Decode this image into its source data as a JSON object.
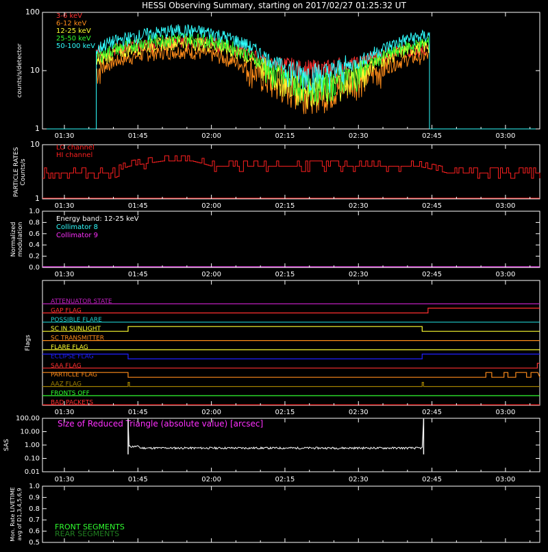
{
  "title": "HESSI Observing Summary, starting on 2017/02/27 01:25:32 UT",
  "time_ticks": [
    "01:30",
    "01:45",
    "02:00",
    "02:15",
    "02:30",
    "02:45",
    "03:00"
  ],
  "time_tick_minutes": [
    30,
    45,
    60,
    75,
    90,
    105,
    120
  ],
  "time_range_minutes": [
    25.53,
    127.0
  ],
  "chart_data": [
    {
      "type": "line",
      "panel": "count-rates",
      "ylabel": "counts/s/detector",
      "yscale": "log",
      "ylim": [
        1,
        100
      ],
      "ytick_labels": [
        "1",
        "10",
        "100"
      ],
      "ytick_values": [
        1,
        10,
        100
      ],
      "x": [
        36.5,
        38.0,
        42.0,
        48.0,
        54.0,
        60.0,
        66.0,
        72.0,
        78.0,
        84.0,
        90.0,
        96.0,
        100.0,
        104.0,
        104.5
      ],
      "series": [
        {
          "name": "3-6 keV",
          "color": "#ff3030",
          "values": [
            20,
            22,
            25,
            29,
            32,
            30,
            22,
            13,
            10,
            10,
            14,
            20,
            23,
            24,
            24
          ]
        },
        {
          "name": "6-12 keV",
          "color": "#ff8c1a",
          "values": [
            10,
            12,
            16,
            20,
            22,
            19,
            13,
            6,
            4,
            4,
            7,
            12,
            16,
            18,
            18
          ]
        },
        {
          "name": "12-25 keV",
          "color": "#ffff30",
          "values": [
            13,
            17,
            22,
            28,
            32,
            28,
            19,
            9,
            5,
            5,
            9,
            17,
            23,
            27,
            27
          ]
        },
        {
          "name": "25-50 keV",
          "color": "#30ff30",
          "values": [
            16,
            20,
            26,
            33,
            37,
            33,
            22,
            10,
            6,
            6,
            10,
            19,
            26,
            30,
            30
          ]
        },
        {
          "name": "50-100 keV",
          "color": "#30ffff",
          "values": [
            22,
            28,
            35,
            44,
            50,
            45,
            31,
            15,
            9,
            9,
            14,
            26,
            35,
            40,
            40
          ]
        }
      ]
    },
    {
      "type": "line",
      "panel": "particle-rates",
      "ylabel": "PARTICLE RATES\nCounts/s",
      "yscale": "log",
      "ylim": [
        1,
        10
      ],
      "ytick_labels": [
        "1",
        "10"
      ],
      "ytick_values": [
        1,
        10
      ],
      "series": [
        {
          "name": "LO channel",
          "color": "#ff2020",
          "values": []
        },
        {
          "name": "HI channel",
          "color": "#ff2020",
          "x": [
            25.5,
            30.0,
            40.0,
            43.0,
            50.0,
            56.0,
            60.0,
            70.0,
            90.0,
            102.0,
            108.0,
            115.0,
            127.0
          ],
          "values": [
            3,
            3,
            3,
            4,
            5,
            5,
            4,
            4,
            4,
            4,
            3,
            3,
            3
          ]
        }
      ]
    },
    {
      "type": "line",
      "panel": "modulation",
      "ylabel": "Normalized\nmodulation",
      "ylim": [
        0.0,
        1.0
      ],
      "ytick_labels": [
        "0.0",
        "0.2",
        "0.4",
        "0.6",
        "0.8",
        "1.0"
      ],
      "ytick_values": [
        0.0,
        0.2,
        0.4,
        0.6,
        0.8,
        1.0
      ],
      "annotation": "Energy band: 12-25 keV",
      "series": [
        {
          "name": "Collimator 8",
          "color": "#30ffff",
          "values": []
        },
        {
          "name": "Collimator 9",
          "color": "#ff30ff",
          "values": [
            0.0
          ]
        }
      ]
    },
    {
      "type": "line",
      "panel": "sas",
      "ylabel": "SAS",
      "yscale": "log",
      "ylim": [
        0.01,
        100
      ],
      "ytick_labels": [
        "0.01",
        "0.10",
        "1.00",
        "10.00",
        "100.00"
      ],
      "ytick_values": [
        0.01,
        0.1,
        1,
        10,
        100
      ],
      "series": [
        {
          "name": "Size of Reduced Triangle (absolute value) [arcsec]",
          "color": "#ffffff",
          "x": [
            43.0,
            43.2,
            50.0,
            70.0,
            90.0,
            102.0,
            103.0,
            103.3
          ],
          "values": [
            100,
            0.8,
            0.6,
            0.6,
            0.6,
            0.6,
            0.6,
            100
          ]
        }
      ]
    }
  ],
  "flags_panel": {
    "ylabel": "Flags",
    "flags": [
      {
        "name": "ATTENUATOR STATE",
        "color": "#c020c0",
        "changes": []
      },
      {
        "name": "GAP FLAG",
        "color": "#ff3030",
        "changes": [
          104.2
        ]
      },
      {
        "name": "POSSIBLE FLARE",
        "color": "#20d0d0",
        "changes": []
      },
      {
        "name": "SC IN SUNLIGHT",
        "color": "#ffff30",
        "changes": [
          43.0,
          103.0
        ]
      },
      {
        "name": "SC TRANSMITTER",
        "color": "#ff8c1a",
        "changes": []
      },
      {
        "name": "FLARE FLAG",
        "color": "#ffff30",
        "changes": []
      },
      {
        "name": "ECLIPSE FLAG",
        "color": "#2020ff",
        "changes": [
          43.0,
          103.0
        ]
      },
      {
        "name": "SAA FLAG",
        "color": "#ff3030",
        "changes": [
          126.5
        ]
      },
      {
        "name": "PARTICLE FLAG",
        "color": "#ff8c1a",
        "changes": [
          43.0,
          116.0
        ]
      },
      {
        "name": "AAZ FLAG",
        "color": "#a08000",
        "changes": [
          43.0,
          103.0
        ]
      },
      {
        "name": "FRONTS OFF",
        "color": "#30ff30",
        "changes": []
      },
      {
        "name": "BAD PACKETS",
        "color": "#ff3030",
        "changes": []
      }
    ]
  },
  "livetime_panel": {
    "ylabel": "Mon. Rate LIVETIME\navg of D1,3,4,5,6,9",
    "ytick_labels": [
      "0.5",
      "0.6",
      "0.7",
      "0.8",
      "0.9",
      "1.0"
    ],
    "ytick_values": [
      0.5,
      0.6,
      0.7,
      0.8,
      0.9,
      1.0
    ],
    "ylim": [
      0.5,
      1.0
    ],
    "legend": [
      {
        "name": "FRONT SEGMENTS",
        "color": "#30ff30"
      },
      {
        "name": "REAR SEGMENTS",
        "color": "#208020"
      }
    ]
  },
  "colors": {
    "background": "#000000",
    "axes": "#ffffff"
  }
}
